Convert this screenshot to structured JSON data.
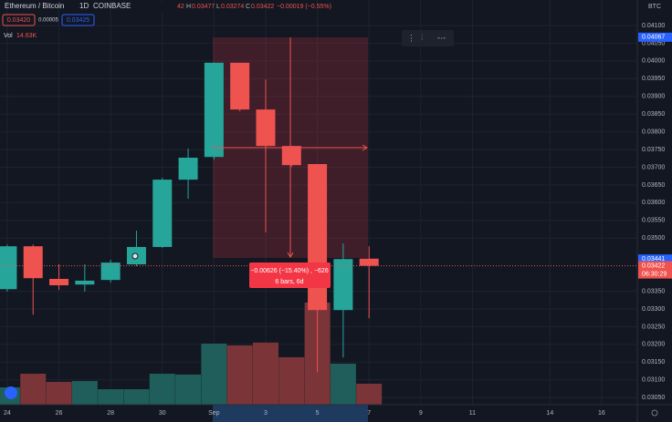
{
  "header": {
    "symbol": "Ethereum / Bitcoin",
    "interval": "1D",
    "exchange": "COINBASE",
    "open_tail": "42",
    "high_label": "H",
    "high": "0.03477",
    "low_label": "L",
    "low": "0.03274",
    "close_label": "C",
    "close": "0.03422",
    "change": "−0.00019 (−0.55%)"
  },
  "order": {
    "sell": "0.03420",
    "spread": "0.00005",
    "buy": "0.03425"
  },
  "volume_legend": {
    "label": "Vol",
    "value": "14.63K"
  },
  "currency": "BTC",
  "measure": {
    "change": "−0.00626 (−15.40%) , −626",
    "span": "6 bars, 6d"
  },
  "chart_data": {
    "type": "candlestick",
    "categories": [
      "24",
      null,
      "26",
      null,
      "28",
      null,
      "30",
      null,
      "Sep",
      null,
      "3",
      null,
      "5",
      null,
      "7"
    ],
    "open": [
      0.03356,
      0.03477,
      0.03385,
      0.03369,
      0.03382,
      0.03426,
      0.03475,
      0.03665,
      0.03729,
      0.03995,
      0.03863,
      0.0376,
      0.03709,
      0.03297,
      0.03442
    ],
    "high": [
      0.03482,
      0.03482,
      0.03426,
      0.03426,
      0.03439,
      0.03521,
      0.0367,
      0.03753,
      0.03995,
      0.03995,
      0.03948,
      0.0376,
      0.03709,
      0.03485,
      0.03477
    ],
    "low": [
      0.03349,
      0.03284,
      0.03354,
      0.03349,
      0.03374,
      0.03421,
      0.03472,
      0.03611,
      0.03722,
      0.03858,
      0.03516,
      0.03701,
      0.03122,
      0.03163,
      0.03274
    ],
    "close": [
      0.03477,
      0.03387,
      0.03367,
      0.0338,
      0.03431,
      0.03475,
      0.03665,
      0.03727,
      0.03995,
      0.03863,
      0.0376,
      0.03706,
      0.03297,
      0.03441,
      0.03422
    ],
    "volume": [
      12100,
      21600,
      15900,
      16500,
      10800,
      10800,
      21600,
      21000,
      42600,
      41300,
      43300,
      33100,
      71200,
      28600,
      14630
    ],
    "up_color": "#26a69a",
    "down_color": "#ef5350",
    "volume_up_color": "#1f5e5a",
    "volume_down_color": "#7b3539",
    "xlim": [
      -0.28,
      24.38
    ],
    "xticks": [
      {
        "value": 0,
        "label": "24"
      },
      {
        "value": 2,
        "label": "26"
      },
      {
        "value": 4,
        "label": "28"
      },
      {
        "value": 6,
        "label": "30"
      },
      {
        "value": 8,
        "label": "Sep"
      },
      {
        "value": 10,
        "label": "3"
      },
      {
        "value": 12,
        "label": "5"
      },
      {
        "value": 14,
        "label": "7"
      },
      {
        "value": 16,
        "label": "9"
      },
      {
        "value": 18,
        "label": "11"
      },
      {
        "value": 21,
        "label": "14"
      },
      {
        "value": 23,
        "label": "16"
      }
    ],
    "ylim": [
      0.0303,
      0.04172
    ],
    "yticks": [
      {
        "value": 0.041,
        "label": "0.04100"
      },
      {
        "value": 0.0405,
        "label": "0.04050"
      },
      {
        "value": 0.04,
        "label": "0.04000"
      },
      {
        "value": 0.0395,
        "label": "0.03950"
      },
      {
        "value": 0.039,
        "label": "0.03900"
      },
      {
        "value": 0.0385,
        "label": "0.03850"
      },
      {
        "value": 0.038,
        "label": "0.03800"
      },
      {
        "value": 0.0375,
        "label": "0.03750"
      },
      {
        "value": 0.037,
        "label": "0.03700"
      },
      {
        "value": 0.0365,
        "label": "0.03650"
      },
      {
        "value": 0.036,
        "label": "0.03600"
      },
      {
        "value": 0.0355,
        "label": "0.03550"
      },
      {
        "value": 0.035,
        "label": "0.03500"
      },
      {
        "value": 0.0335,
        "label": "0.03350"
      },
      {
        "value": 0.033,
        "label": "0.03300"
      },
      {
        "value": 0.0325,
        "label": "0.03250"
      },
      {
        "value": 0.032,
        "label": "0.03200"
      },
      {
        "value": 0.0315,
        "label": "0.03150"
      },
      {
        "value": 0.031,
        "label": "0.03100"
      },
      {
        "value": 0.0305,
        "label": "0.03050"
      }
    ],
    "grid": true,
    "price_labels": [
      {
        "value": 0.04067,
        "color": "#2962ff"
      },
      {
        "value": 0.03441,
        "color": "#2962ff"
      },
      {
        "value": 0.03422,
        "color": "#ef5350"
      }
    ],
    "countdown": "06:30:29"
  }
}
